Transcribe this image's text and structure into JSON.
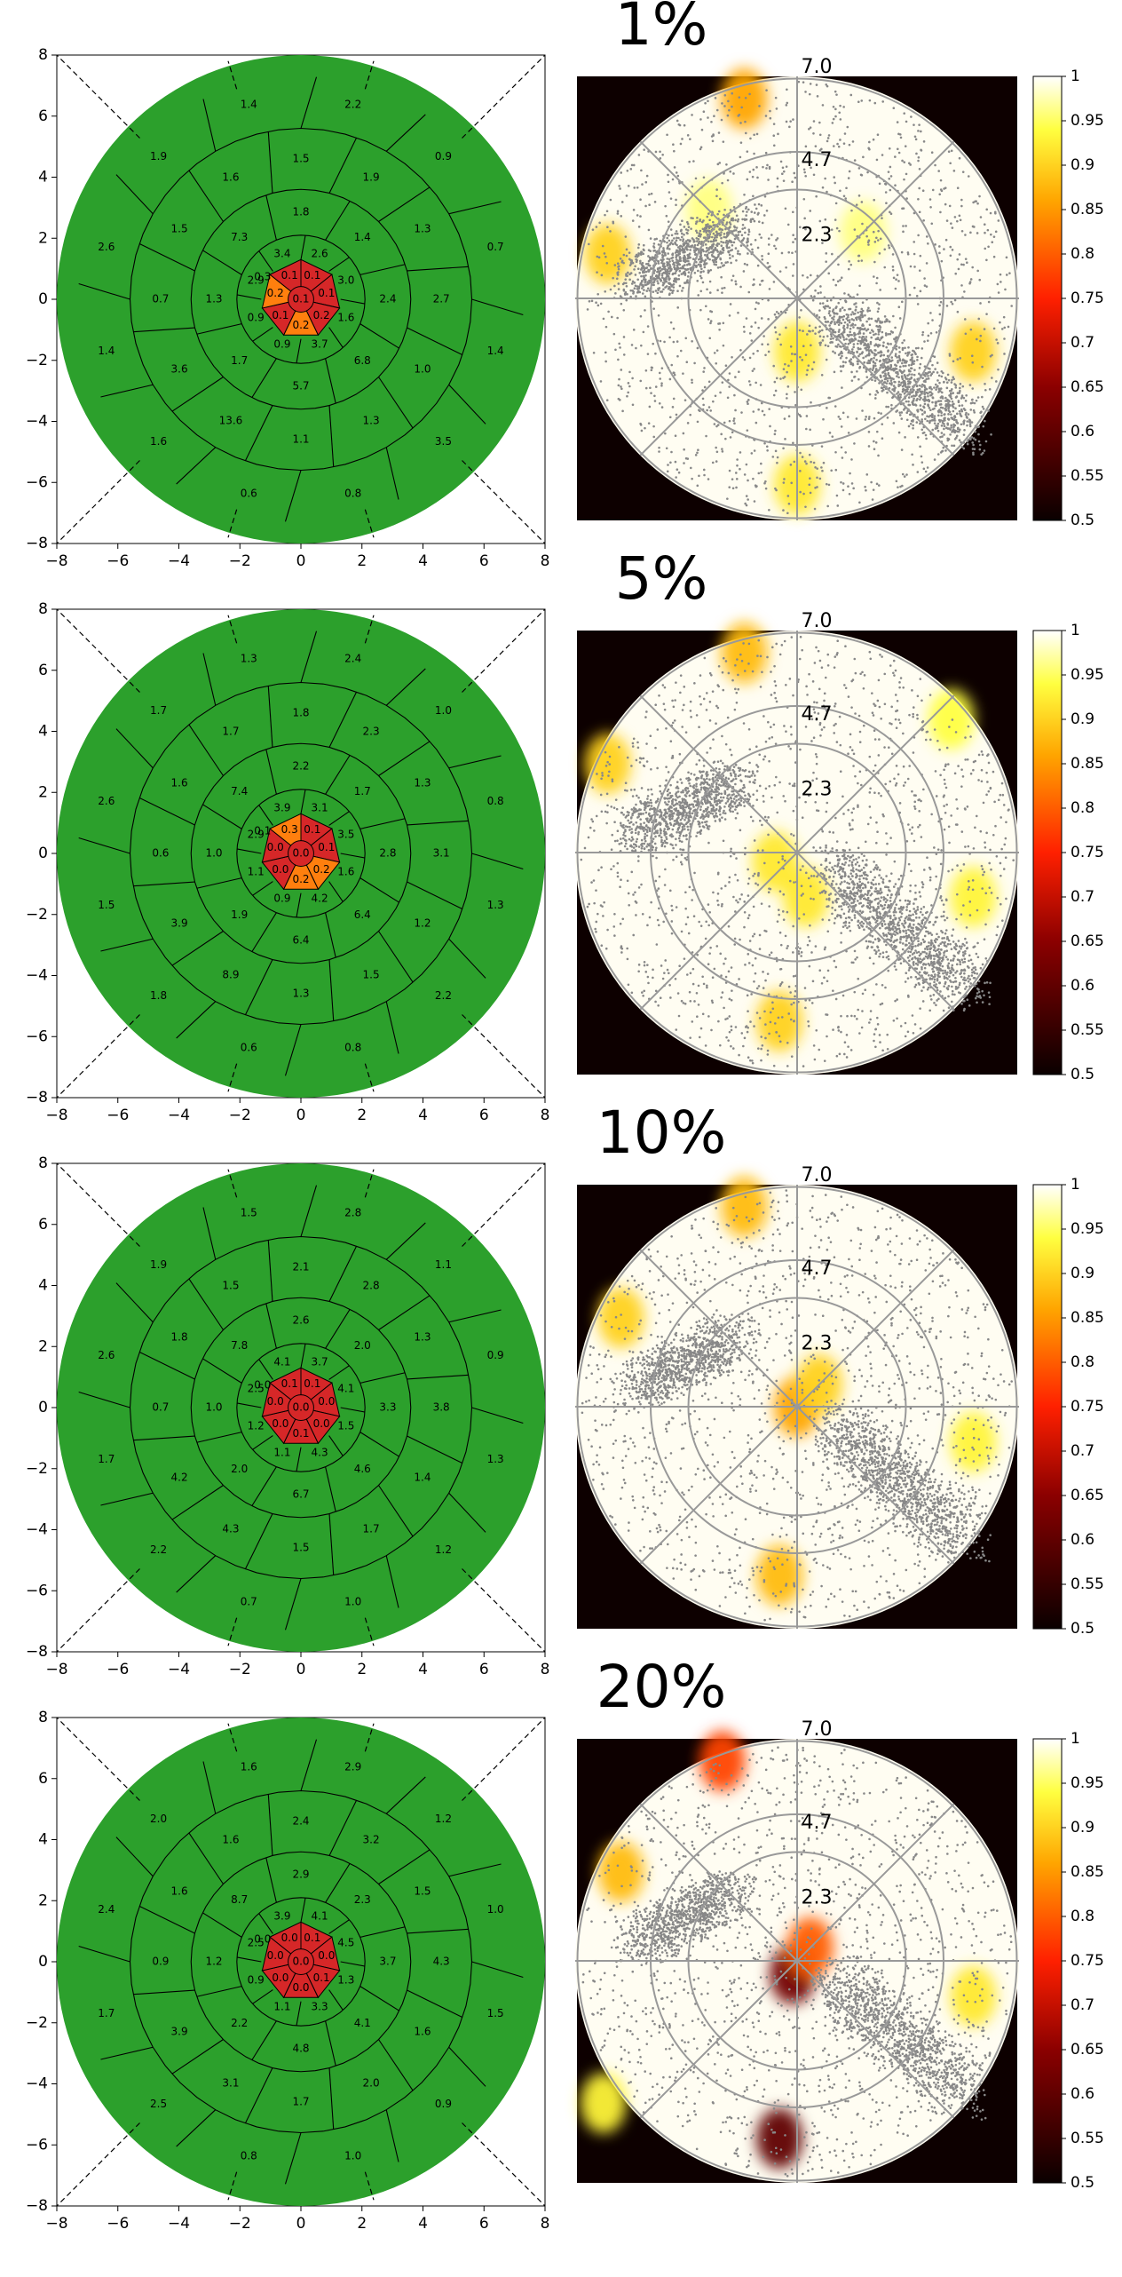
{
  "chart_data": [
    {
      "type": "voronoi-map",
      "xlim": [
        -8,
        8
      ],
      "ylim": [
        -8,
        8
      ],
      "xticks": [
        "−8",
        "−6",
        "−4",
        "−2",
        "0",
        "2",
        "4",
        "6",
        "8"
      ],
      "yticks": [
        "8",
        "6",
        "4",
        "2",
        "0",
        "−2",
        "−4",
        "−6",
        "−8"
      ],
      "center_colors": [
        "#d62728",
        "#d62728",
        "#d62728",
        "#ff7f0e",
        "#d62728",
        "#ff7f0e",
        "#d62728"
      ],
      "center_values": [
        "0.1",
        "0.1",
        "0.2",
        "0.2",
        "0.1",
        "0.2",
        "0.1"
      ],
      "middle_value": "0.1",
      "ring1_values": [
        "2.6",
        "3.0",
        "1.6",
        "3.7",
        "0.9",
        "0.9",
        "2.9",
        "3.4"
      ],
      "ring1_extra": [
        "0.3"
      ],
      "ring2_values": [
        "1.4",
        "2.4",
        "6.8",
        "5.7",
        "1.7",
        "1.3",
        "7.3",
        "1.8"
      ],
      "ring3_values": [
        "1.9",
        "1.3",
        "2.7",
        "1.0",
        "1.3",
        "1.1",
        "13.6",
        "3.6",
        "0.7",
        "1.5",
        "1.6",
        "1.5"
      ],
      "ring4_values": [
        "2.2",
        "0.9",
        "0.7",
        "1.4",
        "3.5",
        "0.8",
        "0.6",
        "1.6",
        "1.4",
        "2.6",
        "1.9",
        "1.4"
      ]
    },
    {
      "type": "heatmap",
      "title": "1%",
      "radial_labels": [
        "7.0",
        "4.7",
        "2.3"
      ],
      "colorbar_ticks": [
        "1",
        "0.95",
        "0.9",
        "0.85",
        "0.8",
        "0.75",
        "0.7",
        "0.65",
        "0.6",
        "0.55",
        "0.5"
      ],
      "zlim": [
        0.5,
        1
      ],
      "hotspots": [
        {
          "x": 0.38,
          "y": 0.05,
          "v": 0.86
        },
        {
          "x": 0.07,
          "y": 0.4,
          "v": 0.9
        },
        {
          "x": 0.5,
          "y": 0.62,
          "v": 0.92
        },
        {
          "x": 0.9,
          "y": 0.62,
          "v": 0.9
        },
        {
          "x": 0.5,
          "y": 0.92,
          "v": 0.92
        },
        {
          "x": 0.3,
          "y": 0.3,
          "v": 0.96
        },
        {
          "x": 0.65,
          "y": 0.35,
          "v": 0.96
        }
      ]
    },
    {
      "type": "voronoi-map",
      "xlim": [
        -8,
        8
      ],
      "ylim": [
        -8,
        8
      ],
      "xticks": [
        "−8",
        "−6",
        "−4",
        "−2",
        "0",
        "2",
        "4",
        "6",
        "8"
      ],
      "yticks": [
        "8",
        "6",
        "4",
        "2",
        "0",
        "−2",
        "−4",
        "−6",
        "−8"
      ],
      "center_colors": [
        "#d62728",
        "#d62728",
        "#ff7f0e",
        "#ff7f0e",
        "#d62728",
        "#d62728",
        "#ff7f0e"
      ],
      "center_values": [
        "0.1",
        "0.1",
        "0.2",
        "0.2",
        "0.0",
        "0.0",
        "0.3"
      ],
      "middle_value": "0.0",
      "ring1_values": [
        "3.1",
        "3.5",
        "1.6",
        "4.2",
        "0.9",
        "1.1",
        "2.9",
        "3.9"
      ],
      "ring1_extra": [
        "0.1"
      ],
      "ring2_values": [
        "1.7",
        "2.8",
        "6.4",
        "6.4",
        "1.9",
        "1.0",
        "7.4",
        "2.2"
      ],
      "ring3_values": [
        "2.3",
        "1.3",
        "3.1",
        "1.2",
        "1.5",
        "1.3",
        "8.9",
        "3.9",
        "0.6",
        "1.6",
        "1.7",
        "1.8"
      ],
      "ring4_values": [
        "2.4",
        "1.0",
        "0.8",
        "1.3",
        "2.2",
        "0.8",
        "0.6",
        "1.8",
        "1.5",
        "2.6",
        "1.7",
        "1.3"
      ]
    },
    {
      "type": "heatmap",
      "title": "5%",
      "radial_labels": [
        "7.0",
        "4.7",
        "2.3"
      ],
      "colorbar_ticks": [
        "1",
        "0.95",
        "0.9",
        "0.85",
        "0.8",
        "0.75",
        "0.7",
        "0.65",
        "0.6",
        "0.55",
        "0.5"
      ],
      "zlim": [
        0.5,
        1
      ],
      "hotspots": [
        {
          "x": 0.38,
          "y": 0.05,
          "v": 0.88
        },
        {
          "x": 0.07,
          "y": 0.3,
          "v": 0.9
        },
        {
          "x": 0.45,
          "y": 0.52,
          "v": 0.92
        },
        {
          "x": 0.52,
          "y": 0.6,
          "v": 0.92
        },
        {
          "x": 0.46,
          "y": 0.88,
          "v": 0.9
        },
        {
          "x": 0.85,
          "y": 0.2,
          "v": 0.94
        },
        {
          "x": 0.9,
          "y": 0.6,
          "v": 0.93
        }
      ]
    },
    {
      "type": "voronoi-map",
      "xlim": [
        -8,
        8
      ],
      "ylim": [
        -8,
        8
      ],
      "xticks": [
        "−8",
        "−6",
        "−4",
        "−2",
        "0",
        "2",
        "4",
        "6",
        "8"
      ],
      "yticks": [
        "8",
        "6",
        "4",
        "2",
        "0",
        "−2",
        "−4",
        "−6",
        "−8"
      ],
      "center_colors": [
        "#d62728",
        "#d62728",
        "#d62728",
        "#d62728",
        "#d62728",
        "#d62728",
        "#d62728"
      ],
      "center_values": [
        "0.1",
        "0.0",
        "0.0",
        "0.1",
        "0.0",
        "0.0",
        "0.1"
      ],
      "middle_value": "0.0",
      "ring1_values": [
        "3.7",
        "4.1",
        "1.5",
        "4.3",
        "1.1",
        "1.2",
        "2.5",
        "4.1"
      ],
      "ring1_extra": [
        "0.0"
      ],
      "ring2_values": [
        "2.0",
        "3.3",
        "4.6",
        "6.7",
        "2.0",
        "1.0",
        "7.8",
        "2.6"
      ],
      "ring3_values": [
        "2.8",
        "1.3",
        "3.8",
        "1.4",
        "1.7",
        "1.5",
        "4.3",
        "4.2",
        "0.7",
        "1.8",
        "1.5",
        "2.1"
      ],
      "ring4_values": [
        "2.8",
        "1.1",
        "0.9",
        "1.3",
        "1.2",
        "1.0",
        "0.7",
        "2.2",
        "1.7",
        "2.6",
        "1.9",
        "1.5"
      ]
    },
    {
      "type": "heatmap",
      "title": "10%",
      "radial_labels": [
        "7.0",
        "4.7",
        "2.3"
      ],
      "colorbar_ticks": [
        "1",
        "0.95",
        "0.9",
        "0.85",
        "0.8",
        "0.75",
        "0.7",
        "0.65",
        "0.6",
        "0.55",
        "0.5"
      ],
      "zlim": [
        0.5,
        1
      ],
      "hotspots": [
        {
          "x": 0.38,
          "y": 0.05,
          "v": 0.88
        },
        {
          "x": 0.1,
          "y": 0.3,
          "v": 0.9
        },
        {
          "x": 0.5,
          "y": 0.5,
          "v": 0.86
        },
        {
          "x": 0.55,
          "y": 0.45,
          "v": 0.9
        },
        {
          "x": 0.46,
          "y": 0.88,
          "v": 0.88
        },
        {
          "x": 0.9,
          "y": 0.58,
          "v": 0.93
        }
      ]
    },
    {
      "type": "voronoi-map",
      "xlim": [
        -8,
        8
      ],
      "ylim": [
        -8,
        8
      ],
      "xticks": [
        "−8",
        "−6",
        "−4",
        "−2",
        "0",
        "2",
        "4",
        "6",
        "8"
      ],
      "yticks": [
        "8",
        "6",
        "4",
        "2",
        "0",
        "−2",
        "−4",
        "−6",
        "−8"
      ],
      "center_colors": [
        "#d62728",
        "#d62728",
        "#d62728",
        "#d62728",
        "#d62728",
        "#d62728",
        "#d62728"
      ],
      "center_values": [
        "0.1",
        "0.0",
        "0.1",
        "0.0",
        "0.0",
        "0.0",
        "0.0"
      ],
      "middle_value": "0.0",
      "ring1_values": [
        "4.1",
        "4.5",
        "1.3",
        "3.3",
        "1.1",
        "0.9",
        "2.5",
        "3.9"
      ],
      "ring1_extra": [
        "0.0"
      ],
      "ring2_values": [
        "2.3",
        "3.7",
        "4.1",
        "4.8",
        "2.2",
        "1.2",
        "8.7",
        "2.9"
      ],
      "ring3_values": [
        "3.2",
        "1.5",
        "4.3",
        "1.6",
        "2.0",
        "1.7",
        "3.1",
        "3.9",
        "0.9",
        "1.6",
        "1.6",
        "2.4"
      ],
      "ring4_values": [
        "2.9",
        "1.2",
        "1.0",
        "1.5",
        "0.9",
        "1.0",
        "0.8",
        "2.5",
        "1.7",
        "2.4",
        "2.0",
        "1.6"
      ]
    },
    {
      "type": "heatmap",
      "title": "20%",
      "radial_labels": [
        "7.0",
        "4.7",
        "2.3"
      ],
      "colorbar_ticks": [
        "1",
        "0.95",
        "0.9",
        "0.85",
        "0.8",
        "0.75",
        "0.7",
        "0.65",
        "0.6",
        "0.55",
        "0.5"
      ],
      "zlim": [
        0.5,
        1
      ],
      "hotspots": [
        {
          "x": 0.33,
          "y": 0.05,
          "v": 0.78
        },
        {
          "x": 0.1,
          "y": 0.3,
          "v": 0.88
        },
        {
          "x": 0.49,
          "y": 0.53,
          "v": 0.62
        },
        {
          "x": 0.53,
          "y": 0.47,
          "v": 0.8
        },
        {
          "x": 0.46,
          "y": 0.9,
          "v": 0.6
        },
        {
          "x": 0.9,
          "y": 0.58,
          "v": 0.92
        },
        {
          "x": 0.06,
          "y": 0.82,
          "v": 0.93
        }
      ]
    }
  ]
}
